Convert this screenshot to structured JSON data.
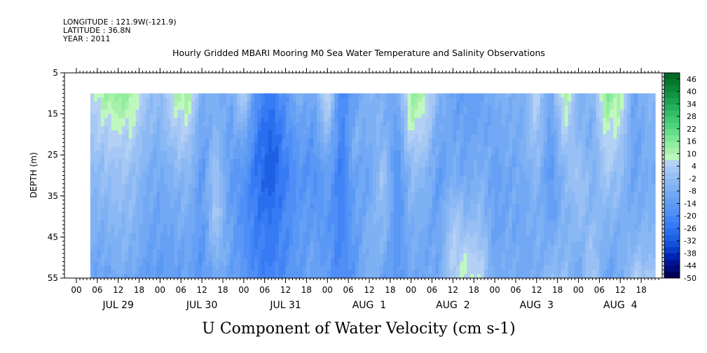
{
  "header": {
    "longitude": "LONGITUDE : 121.9W(-121.9)",
    "latitude": "LATITUDE : 36.8N",
    "year": "YEAR : 2011"
  },
  "chart_data": {
    "type": "heatmap",
    "title": "Hourly Gridded MBARI Mooring M0 Sea Water Temperature and Salinity Observations",
    "xlabel": "U Component of Water Velocity (cm s-1)",
    "ylabel": "DEPTH (m)",
    "y_axis": {
      "range": [
        5,
        55
      ],
      "inverted": true,
      "ticks": [
        5,
        15,
        25,
        35,
        45,
        55
      ]
    },
    "x_axis": {
      "hour_ticks": [
        "00",
        "06",
        "12",
        "18",
        "00",
        "06",
        "12",
        "18",
        "00",
        "06",
        "12",
        "18",
        "00",
        "06",
        "12",
        "18",
        "00",
        "06",
        "12",
        "18",
        "00",
        "06",
        "12",
        "18",
        "00",
        "06",
        "12",
        "18"
      ],
      "day_labels": [
        "JUL 29",
        "JUL 30",
        "JUL 31",
        "AUG  1",
        "AUG  2",
        "AUG  3",
        "AUG  4"
      ],
      "range_hours": [
        0,
        167
      ]
    },
    "data_depth_range": [
      10,
      55
    ],
    "data_time_range_hours": [
      4,
      166
    ],
    "colorbar": {
      "labels": [
        "46",
        "40",
        "34",
        "28",
        "22",
        "16",
        "10",
        "4",
        "-2",
        "-8",
        "-14",
        "-20",
        "-26",
        "-32",
        "-38",
        "-44",
        "-50"
      ],
      "levels": [
        -50,
        -47,
        -44,
        -41,
        -38,
        -35,
        -32,
        -29,
        -26,
        -23,
        -20,
        -17,
        -14,
        -11,
        -8,
        -5,
        -2,
        1,
        4,
        7,
        10,
        13,
        16,
        19,
        22,
        25,
        28,
        31,
        34,
        37,
        40,
        43,
        46,
        49
      ],
      "colors": [
        "#00005a",
        "#000a78",
        "#001496",
        "#0024b4",
        "#0a3cc8",
        "#1450d8",
        "#1e60e4",
        "#2a6ef0",
        "#367af4",
        "#4284f6",
        "#4e8ef6",
        "#5a98f6",
        "#66a0f4",
        "#72a8f4",
        "#7eb0f4",
        "#8ab8f4",
        "#98c0f4",
        "#a6c8f4",
        "#b4d0f4",
        "#bff8bf",
        "#a8f0a8",
        "#90eea0",
        "#7ae696",
        "#64de8a",
        "#50d47e",
        "#3eca72",
        "#30be66",
        "#24b05a",
        "#1aa24e",
        "#129442",
        "#0c8638",
        "#06782e",
        "#006a24"
      ]
    },
    "u_velocity_profiles": {
      "hours": [
        4,
        8,
        12,
        16,
        20,
        24,
        28,
        32,
        36,
        40,
        44,
        48,
        52,
        56,
        60,
        64,
        68,
        72,
        76,
        80,
        84,
        88,
        92,
        96,
        100,
        104,
        108,
        112,
        116,
        120,
        124,
        128,
        132,
        136,
        140,
        144,
        148,
        152,
        156,
        160,
        164
      ],
      "depths_m": [
        10,
        20,
        30,
        40,
        50,
        55
      ],
      "values": [
        [
          5,
          1,
          -4,
          -6,
          -9,
          -10
        ],
        [
          12,
          4,
          -2,
          -6,
          -10,
          -12
        ],
        [
          15,
          6,
          0,
          -3,
          -6,
          -8
        ],
        [
          13,
          5,
          -1,
          -4,
          -7,
          -10
        ],
        [
          2,
          -3,
          -7,
          -10,
          -12,
          -13
        ],
        [
          -3,
          -6,
          -9,
          -11,
          -13,
          -14
        ],
        [
          10,
          2,
          -5,
          -9,
          -12,
          -13
        ],
        [
          14,
          4,
          -3,
          -7,
          -10,
          -11
        ],
        [
          -8,
          -12,
          -15,
          -15,
          -16,
          -16
        ],
        [
          -6,
          -4,
          2,
          3,
          -4,
          -10
        ],
        [
          -10,
          -12,
          -14,
          -12,
          -11,
          -12
        ],
        [
          6,
          -8,
          -16,
          -18,
          -17,
          -15
        ],
        [
          -20,
          -24,
          -27,
          -24,
          -22,
          -20
        ],
        [
          -24,
          -30,
          -32,
          -27,
          -24,
          -22
        ],
        [
          -16,
          -20,
          -23,
          -20,
          -19,
          -18
        ],
        [
          -6,
          -12,
          -16,
          -15,
          -14,
          -14
        ],
        [
          -11,
          -15,
          -18,
          -14,
          -12,
          -10
        ],
        [
          10,
          -2,
          -12,
          -15,
          -15,
          -14
        ],
        [
          -22,
          -22,
          -24,
          -22,
          -21,
          -20
        ],
        [
          -12,
          -6,
          -10,
          -12,
          -14,
          -15
        ],
        [
          -4,
          -8,
          -12,
          -8,
          -6,
          -4
        ],
        [
          -8,
          -4,
          2,
          -2,
          -8,
          -12
        ],
        [
          -10,
          -14,
          -18,
          -17,
          -16,
          -15
        ],
        [
          14,
          6,
          -2,
          -6,
          -8,
          -10
        ],
        [
          10,
          4,
          -4,
          -8,
          -10,
          -11
        ],
        [
          -5,
          -10,
          -14,
          -12,
          -10,
          -8
        ],
        [
          -12,
          -10,
          -8,
          2,
          6,
          4
        ],
        [
          -14,
          -12,
          -10,
          -4,
          6,
          8
        ],
        [
          -12,
          -10,
          -6,
          -2,
          4,
          6
        ],
        [
          -8,
          -10,
          -12,
          -12,
          -11,
          -10
        ],
        [
          -6,
          -8,
          -10,
          -10,
          -8,
          -7
        ],
        [
          -8,
          -8,
          -9,
          -10,
          -10,
          -10
        ],
        [
          6,
          2,
          -4,
          -6,
          -8,
          -9
        ],
        [
          -12,
          -14,
          -16,
          -12,
          -6,
          -2
        ],
        [
          14,
          4,
          -4,
          -6,
          -4,
          -2
        ],
        [
          -6,
          -4,
          2,
          -2,
          -8,
          -10
        ],
        [
          -4,
          -8,
          -6,
          -4,
          2,
          4
        ],
        [
          16,
          8,
          2,
          -4,
          -10,
          -12
        ],
        [
          12,
          4,
          -2,
          -6,
          -8,
          -9
        ],
        [
          -12,
          -12,
          -12,
          -8,
          -2,
          4
        ],
        [
          -4,
          -6,
          -8,
          -6,
          -2,
          2
        ]
      ]
    }
  }
}
